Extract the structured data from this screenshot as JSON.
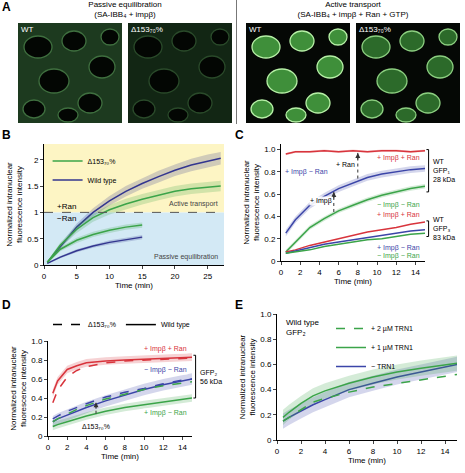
{
  "image_panel": {
    "panel": "A",
    "image_groups": [
      {
        "header": "Passive equilibration (SA-IBB₄ + impβ)",
        "images": [
          "WT",
          "Δ153₇₀%"
        ]
      },
      {
        "header": "Active transport (SA-IBB₄ + impβ + Ran + GTP)",
        "images": [
          "WT",
          "Δ153₇₀%"
        ]
      }
    ]
  },
  "chart_data": [
    {
      "panel": "B",
      "type": "line",
      "x_label": "Time (min)",
      "y_label": "Normalized intranuclear fluorescence intensity",
      "xlim": [
        0,
        27.5
      ],
      "xticks": [
        0,
        5,
        10,
        15,
        20,
        25
      ],
      "ylim": [
        0,
        2.3
      ],
      "yticks": [
        0,
        0.5,
        1,
        1.5,
        2
      ],
      "legend": "top left",
      "legend_entries": [
        {
          "name": "Wild type",
          "color": "#33368f",
          "line_style": "solid"
        },
        {
          "name": "Δ153₇₀%",
          "color": "#3ba449",
          "line_style": "solid"
        }
      ],
      "regions": [
        {
          "label": "Active transport",
          "from": 1,
          "to": 2.3,
          "color": "#fdf5c4"
        },
        {
          "label": "Passive equilibration",
          "from": 0,
          "to": 1,
          "color": "#d3e9f5"
        }
      ],
      "reference_line": 1,
      "annotations": [
        {
          "text": "+Ran",
          "x": 3.5,
          "y": 1.12
        },
        {
          "text": "−Ran",
          "x": 3.5,
          "y": 0.88
        }
      ],
      "series": [
        {
          "color": "#33368f",
          "line_style": "solid",
          "x": [
            0.5,
            2.5,
            5,
            7.5,
            10,
            12.5,
            15,
            17.5,
            20,
            22.5,
            25,
            27
          ],
          "values": [
            0.05,
            0.35,
            0.72,
            1.0,
            1.22,
            1.4,
            1.55,
            1.68,
            1.8,
            1.9,
            1.98,
            2.03
          ],
          "error": [
            0.02,
            0.05,
            0.07,
            0.08,
            0.09,
            0.1,
            0.1,
            0.11,
            0.11,
            0.12,
            0.12,
            0.12
          ]
        },
        {
          "color": "#3ba449",
          "line_style": "solid",
          "x": [
            0.5,
            2.5,
            5,
            7.5,
            10,
            12.5,
            15,
            17.5,
            20,
            22.5,
            25,
            27
          ],
          "values": [
            0.05,
            0.38,
            0.68,
            0.9,
            1.05,
            1.16,
            1.25,
            1.33,
            1.4,
            1.45,
            1.48,
            1.5
          ],
          "error": [
            0.02,
            0.05,
            0.07,
            0.08,
            0.09,
            0.1,
            0.1,
            0.1,
            0.1,
            0.1,
            0.1,
            0.1
          ]
        },
        {
          "color": "#33368f",
          "line_style": "solid",
          "x": [
            0.5,
            2.5,
            5,
            7.5,
            10,
            12.5,
            15
          ],
          "values": [
            0.03,
            0.15,
            0.27,
            0.36,
            0.43,
            0.48,
            0.53
          ],
          "error": [
            0.01,
            0.02,
            0.03,
            0.03,
            0.04,
            0.04,
            0.04
          ]
        },
        {
          "color": "#3ba449",
          "line_style": "solid",
          "x": [
            0.5,
            2.5,
            5,
            7.5,
            10,
            12.5,
            15
          ],
          "values": [
            0.05,
            0.3,
            0.47,
            0.58,
            0.66,
            0.72,
            0.76
          ],
          "error": [
            0.02,
            0.04,
            0.05,
            0.05,
            0.05,
            0.05,
            0.05
          ]
        }
      ]
    },
    {
      "panel": "C",
      "type": "line",
      "x_label": "Time (min)",
      "y_label": "Normalized intranuclear fluorescence intensity",
      "xlim": [
        0,
        15
      ],
      "xticks": [
        0,
        2,
        4,
        6,
        8,
        10,
        12,
        14
      ],
      "ylim": [
        0,
        1.05
      ],
      "yticks": [
        0,
        0.2,
        0.4,
        0.6,
        0.8,
        {
          "value": 1,
          "label": "1.0"
        }
      ],
      "curve_labels": [
        {
          "text": "+ Impβ + Ran",
          "x": 12.2,
          "y": 0.925,
          "color": "#d8343c"
        },
        {
          "text": "+ Impβ − Ran",
          "x": 2.7,
          "y": 0.8,
          "color": "#3b45a8"
        },
        {
          "text": "− Impβ − Ran",
          "x": 12.2,
          "y": 0.5,
          "color": "#3ba449"
        },
        {
          "text": "+ Impβ + Ran",
          "x": 12.2,
          "y": 0.415,
          "color": "#d8343c"
        },
        {
          "text": "+ Impβ − Ran",
          "x": 12.2,
          "y": 0.12,
          "color": "#3b45a8"
        },
        {
          "text": "− Impβ − Ran",
          "x": 12.2,
          "y": 0.045,
          "color": "#3ba449"
        }
      ],
      "arrows": [
        {
          "text": "+ Impβ",
          "x": 5.5,
          "from": 0.44,
          "to": 0.62,
          "label_x": 4.2,
          "label_y": 0.54
        },
        {
          "text": "+ Ran",
          "x": 8,
          "from": 0.74,
          "to": 0.97,
          "label_x": 6.7,
          "label_y": 0.87
        }
      ],
      "brackets": [
        {
          "text": "WT GFP₁ 28 kDa",
          "from": 0.62,
          "to": 1.0
        },
        {
          "text": "WT GFP₃ 83 kDa",
          "from": 0.22,
          "to": 0.36
        }
      ],
      "series": [
        {
          "color": "#d8343c",
          "line_style": "solid",
          "x": [
            0.5,
            1.5,
            3,
            4.5,
            6,
            7.5,
            9,
            10.5,
            12,
            13.5,
            15
          ],
          "values": [
            0.96,
            0.98,
            0.98,
            0.99,
            0.98,
            0.99,
            0.98,
            0.99,
            0.99,
            0.98,
            0.99
          ],
          "error": [
            0.01,
            0.01,
            0.01,
            0.01,
            0.01,
            0.01,
            0.01,
            0.01,
            0.01,
            0.01,
            0.01
          ]
        },
        {
          "color": "#3b45a8",
          "line_style": "solid",
          "x": [
            0.5,
            1.5,
            3,
            4.5,
            6,
            7.5,
            9,
            10.5,
            12,
            13.5,
            15
          ],
          "values": [
            0.25,
            0.37,
            0.5,
            0.58,
            0.65,
            0.7,
            0.75,
            0.78,
            0.8,
            0.82,
            0.83
          ],
          "error": [
            0.03,
            0.03,
            0.03,
            0.03,
            0.03,
            0.03,
            0.03,
            0.03,
            0.03,
            0.03,
            0.03
          ]
        },
        {
          "color": "#3ba449",
          "line_style": "solid",
          "x": [
            0.5,
            1.5,
            3,
            4.5,
            6,
            7.5,
            9,
            10.5,
            12,
            13.5,
            15
          ],
          "values": [
            0.08,
            0.17,
            0.3,
            0.38,
            0.45,
            0.5,
            0.55,
            0.59,
            0.62,
            0.65,
            0.67
          ],
          "error": [
            0.02,
            0.02,
            0.02,
            0.02,
            0.02,
            0.02,
            0.02,
            0.02,
            0.02,
            0.02,
            0.02
          ]
        },
        {
          "color": "#d8343c",
          "line_style": "solid",
          "x": [
            0.5,
            1.5,
            3,
            4.5,
            6,
            7.5,
            9,
            10.5,
            12,
            13.5,
            15
          ],
          "values": [
            0.08,
            0.1,
            0.14,
            0.17,
            0.2,
            0.23,
            0.26,
            0.28,
            0.3,
            0.33,
            0.35
          ]
        },
        {
          "color": "#3b45a8",
          "line_style": "solid",
          "x": [
            0.5,
            1.5,
            3,
            4.5,
            6,
            7.5,
            9,
            10.5,
            12,
            13.5,
            15
          ],
          "values": [
            0.07,
            0.09,
            0.12,
            0.15,
            0.17,
            0.19,
            0.21,
            0.23,
            0.25,
            0.27,
            0.28
          ]
        },
        {
          "color": "#3ba449",
          "line_style": "solid",
          "x": [
            0.5,
            1.5,
            3,
            4.5,
            6,
            7.5,
            9,
            10.5,
            12,
            13.5,
            15
          ],
          "values": [
            0.07,
            0.08,
            0.1,
            0.13,
            0.15,
            0.17,
            0.19,
            0.2,
            0.22,
            0.24,
            0.25
          ]
        }
      ]
    },
    {
      "panel": "D",
      "type": "line",
      "x_label": "Time (min)",
      "y_label": "Normalized intranuclear fluorescence intensity",
      "xlim": [
        0,
        15
      ],
      "xticks": [
        0,
        2,
        4,
        6,
        8,
        10,
        12,
        14
      ],
      "ylim": [
        0,
        1
      ],
      "yticks": [
        0,
        0.2,
        0.4,
        0.6,
        0.8,
        {
          "value": 1,
          "label": "1.0"
        }
      ],
      "legend": "top",
      "legend_entries": [
        {
          "name": "Wild type",
          "color": "#000000",
          "line_style": "solid"
        },
        {
          "name": "Δ153₇₀%",
          "color": "#000000",
          "line_style": "dash"
        }
      ],
      "curve_labels": [
        {
          "text": "+ Impβ + Ran",
          "x": 12.2,
          "y": 0.92,
          "color": "#d8343c"
        },
        {
          "text": "− Impβ − Ran",
          "x": 12.2,
          "y": 0.7,
          "color": "#3b45a8"
        },
        {
          "text": "+ Impβ − Ran",
          "x": 12.2,
          "y": 0.24,
          "color": "#3ba449"
        }
      ],
      "arrows": [
        {
          "text": "Δ153₇₀%",
          "x": 5,
          "from": 0.235,
          "to": 0.355,
          "label_x": 5,
          "label_y": 0.1
        }
      ],
      "brackets": [
        {
          "text": "GFP₂ 56 kDa",
          "from": 0.4,
          "to": 0.85
        }
      ],
      "series": [
        {
          "color": "#d8343c",
          "line_style": "solid",
          "x": [
            0.5,
            1,
            2,
            3,
            4,
            6,
            8,
            10,
            12,
            14,
            15
          ],
          "values": [
            0.45,
            0.58,
            0.7,
            0.74,
            0.77,
            0.79,
            0.8,
            0.81,
            0.82,
            0.83,
            0.83
          ],
          "error": [
            0.04,
            0.04,
            0.04,
            0.04,
            0.04,
            0.04,
            0.04,
            0.04,
            0.04,
            0.04,
            0.04
          ]
        },
        {
          "color": "#d8343c",
          "line_style": "dash",
          "x": [
            0.5,
            1,
            2,
            3,
            4,
            6,
            8,
            10,
            12,
            14,
            15
          ],
          "values": [
            0.35,
            0.48,
            0.62,
            0.69,
            0.73,
            0.77,
            0.79,
            0.8,
            0.81,
            0.82,
            0.82
          ]
        },
        {
          "color": "#3b45a8",
          "line_style": "solid",
          "x": [
            0.5,
            1,
            2,
            3,
            4,
            6,
            8,
            10,
            12,
            14,
            15
          ],
          "values": [
            0.15,
            0.18,
            0.22,
            0.26,
            0.3,
            0.37,
            0.43,
            0.49,
            0.54,
            0.58,
            0.6
          ],
          "error": [
            0.06,
            0.06,
            0.06,
            0.06,
            0.06,
            0.06,
            0.06,
            0.06,
            0.06,
            0.06,
            0.06
          ]
        },
        {
          "color": "#3b45a8",
          "line_style": "dash",
          "x": [
            0.5,
            1,
            2,
            3,
            4,
            6,
            8,
            10,
            12,
            14,
            15
          ],
          "values": [
            0.18,
            0.21,
            0.26,
            0.3,
            0.34,
            0.41,
            0.46,
            0.5,
            0.55,
            0.59,
            0.6
          ]
        },
        {
          "color": "#3ba449",
          "line_style": "solid",
          "x": [
            0.5,
            1,
            2,
            3,
            4,
            6,
            8,
            10,
            12,
            14,
            15
          ],
          "values": [
            0.1,
            0.12,
            0.15,
            0.18,
            0.21,
            0.26,
            0.3,
            0.33,
            0.36,
            0.39,
            0.4
          ],
          "error": [
            0.04,
            0.04,
            0.04,
            0.04,
            0.04,
            0.04,
            0.04,
            0.04,
            0.04,
            0.04,
            0.04
          ]
        },
        {
          "color": "#3ba449",
          "line_style": "dash",
          "x": [
            0.5,
            1,
            2,
            3,
            4,
            6,
            8,
            10,
            12,
            14,
            15
          ],
          "values": [
            0.15,
            0.18,
            0.23,
            0.28,
            0.32,
            0.39,
            0.44,
            0.49,
            0.53,
            0.56,
            0.57
          ]
        }
      ]
    },
    {
      "panel": "E",
      "type": "line",
      "x_label": "Time (min)",
      "y_label": "Normalized intranuclear fluorescence intensity",
      "xlim": [
        0,
        15
      ],
      "xticks": [
        0,
        2,
        4,
        6,
        8,
        10,
        12,
        14
      ],
      "ylim": [
        0,
        1
      ],
      "yticks": [
        0,
        0.2,
        0.4,
        0.6,
        0.8,
        {
          "value": 1,
          "label": "1.0"
        }
      ],
      "legend": "top center",
      "note": {
        "text": "Wild type GFP₂",
        "x": 2.1,
        "y": 0.89
      },
      "series": [
        {
          "name": "− TRN1",
          "color": "#3b45a8",
          "line_style": "solid",
          "x": [
            0.5,
            1,
            2,
            3,
            4,
            6,
            8,
            10,
            12,
            14,
            15
          ],
          "values": [
            0.15,
            0.18,
            0.23,
            0.28,
            0.32,
            0.4,
            0.45,
            0.5,
            0.54,
            0.58,
            0.6
          ],
          "error": [
            0.06,
            0.06,
            0.06,
            0.06,
            0.06,
            0.06,
            0.06,
            0.06,
            0.06,
            0.06,
            0.06
          ]
        },
        {
          "name": "+ 1 µM TRN1",
          "color": "#3ba449",
          "line_style": "solid",
          "x": [
            0.5,
            1,
            2,
            3,
            4,
            6,
            8,
            10,
            12,
            14,
            15
          ],
          "values": [
            0.18,
            0.22,
            0.29,
            0.35,
            0.39,
            0.45,
            0.5,
            0.54,
            0.57,
            0.6,
            0.61
          ],
          "error": [
            0.06,
            0.06,
            0.06,
            0.06,
            0.06,
            0.06,
            0.06,
            0.06,
            0.06,
            0.06,
            0.06
          ]
        },
        {
          "name": "+ 2 µM TRN1",
          "color": "#3ba449",
          "line_style": "dash",
          "x": [
            0.5,
            1,
            2,
            3,
            4,
            6,
            8,
            10,
            12,
            14,
            15
          ],
          "values": [
            0.15,
            0.18,
            0.24,
            0.3,
            0.33,
            0.38,
            0.42,
            0.45,
            0.48,
            0.51,
            0.52
          ]
        }
      ]
    }
  ]
}
